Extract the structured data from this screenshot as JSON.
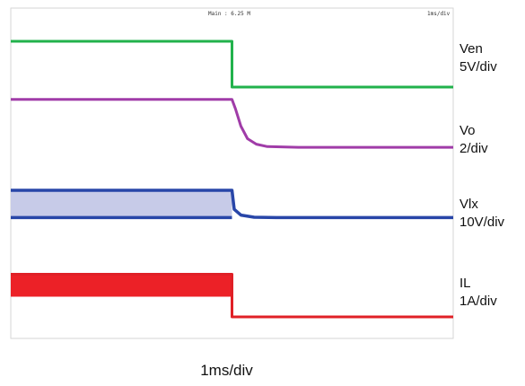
{
  "chart_data": {
    "type": "line",
    "header": {
      "left": "Main : 6.25 M",
      "right": "1ms/div"
    },
    "xlabel": "1ms/div",
    "x_range_div": [
      0,
      10
    ],
    "grid": false,
    "event_div": 5.0,
    "series": [
      {
        "name": "Ven",
        "scale": "5V/div",
        "color": "#22b24c",
        "points": [
          [
            0,
            4.9
          ],
          [
            5.0,
            4.9
          ],
          [
            5.0,
            0.0
          ],
          [
            10,
            0.0
          ]
        ]
      },
      {
        "name": "Vo",
        "scale": "2/div",
        "color": "#a03ca8",
        "points": [
          [
            0,
            4.3
          ],
          [
            5.0,
            4.3
          ],
          [
            5.08,
            3.7
          ],
          [
            5.2,
            2.6
          ],
          [
            5.35,
            1.8
          ],
          [
            5.55,
            1.45
          ],
          [
            5.8,
            1.3
          ],
          [
            6.5,
            1.25
          ],
          [
            10,
            1.25
          ]
        ]
      },
      {
        "name": "Vlx",
        "scale": "10V/div",
        "color": "#2846a8",
        "points": [
          [
            0,
            3.15
          ],
          [
            5.0,
            3.15
          ],
          [
            5.05,
            2.0
          ],
          [
            5.2,
            1.65
          ],
          [
            5.5,
            1.52
          ],
          [
            6.0,
            1.5
          ],
          [
            10,
            1.5
          ]
        ],
        "band_low": 1.5,
        "band_fill": "#c7cbe8"
      },
      {
        "name": "IL",
        "scale": "1A/div",
        "color": "#e02026",
        "points": [
          [
            0,
            0.95
          ],
          [
            5.0,
            0.95
          ],
          [
            5.0,
            0.0
          ],
          [
            10,
            0.0
          ]
        ],
        "band_low": 0.45,
        "band_fill": "#ec2127"
      }
    ]
  }
}
